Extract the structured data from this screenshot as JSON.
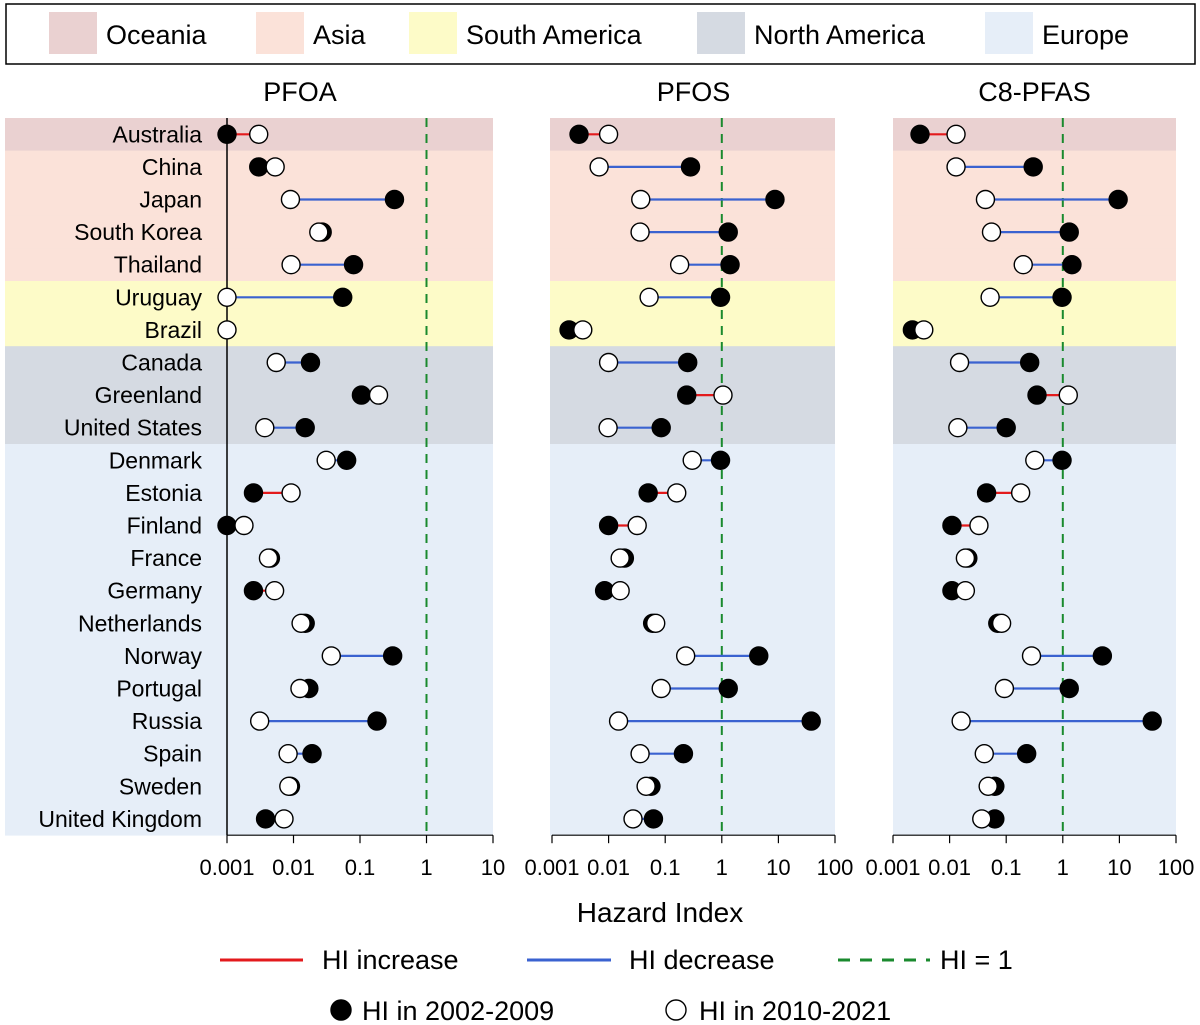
{
  "chart_data": {
    "type": "dumbbell",
    "scale": "log",
    "xlabel": "Hazard Index",
    "reference_line": {
      "value": 1,
      "label": "HI = 1",
      "color": "#1a8a2e"
    },
    "region_legend": [
      {
        "name": "Oceania",
        "color": "#ead1d1"
      },
      {
        "name": "Asia",
        "color": "#fbe2d9"
      },
      {
        "name": "South America",
        "color": "#fdfbc8"
      },
      {
        "name": "North America",
        "color": "#d5dae2"
      },
      {
        "name": "Europe",
        "color": "#e6eef8"
      }
    ],
    "line_legend": [
      {
        "name": "HI increase",
        "color": "#e31a1c"
      },
      {
        "name": "HI decrease",
        "color": "#3a62d0"
      }
    ],
    "marker_legend": [
      {
        "name": "HI in 2002-2009",
        "fill": "#000000"
      },
      {
        "name": "HI in 2010-2021",
        "fill": "#ffffff"
      }
    ],
    "countries": [
      {
        "name": "Australia",
        "region": "Oceania"
      },
      {
        "name": "China",
        "region": "Asia"
      },
      {
        "name": "Japan",
        "region": "Asia"
      },
      {
        "name": "South Korea",
        "region": "Asia"
      },
      {
        "name": "Thailand",
        "region": "Asia"
      },
      {
        "name": "Uruguay",
        "region": "South America"
      },
      {
        "name": "Brazil",
        "region": "South America"
      },
      {
        "name": "Canada",
        "region": "North America"
      },
      {
        "name": "Greenland",
        "region": "North America"
      },
      {
        "name": "United States",
        "region": "North America"
      },
      {
        "name": "Denmark",
        "region": "Europe"
      },
      {
        "name": "Estonia",
        "region": "Europe"
      },
      {
        "name": "Finland",
        "region": "Europe"
      },
      {
        "name": "France",
        "region": "Europe"
      },
      {
        "name": "Germany",
        "region": "Europe"
      },
      {
        "name": "Netherlands",
        "region": "Europe"
      },
      {
        "name": "Norway",
        "region": "Europe"
      },
      {
        "name": "Portugal",
        "region": "Europe"
      },
      {
        "name": "Russia",
        "region": "Europe"
      },
      {
        "name": "Spain",
        "region": "Europe"
      },
      {
        "name": "Sweden",
        "region": "Europe"
      },
      {
        "name": "United Kingdom",
        "region": "Europe"
      }
    ],
    "panels": [
      {
        "title": "PFOA",
        "xlim": [
          0.001,
          10
        ],
        "ticks": [
          0.001,
          0.01,
          0.1,
          1,
          10
        ],
        "tick_labels": [
          "0.001",
          "0.01",
          "0.1",
          "1",
          "10"
        ],
        "hi_2002_2009": [
          0.001,
          0.003,
          0.33,
          0.027,
          0.08,
          0.055,
          null,
          0.018,
          0.105,
          0.015,
          0.063,
          0.0025,
          0.001,
          0.0045,
          0.0025,
          0.015,
          0.31,
          0.017,
          0.18,
          0.019,
          0.009,
          0.0038
        ],
        "hi_2010_2021": [
          0.003,
          0.0053,
          0.009,
          0.024,
          0.0092,
          0.001,
          0.001,
          0.0055,
          0.19,
          0.0037,
          0.031,
          0.0092,
          0.0018,
          0.0042,
          0.0052,
          0.013,
          0.037,
          0.0125,
          0.0031,
          0.0083,
          0.0085,
          0.0072
        ]
      },
      {
        "title": "PFOS",
        "xlim": [
          0.001,
          100
        ],
        "ticks": [
          0.001,
          0.01,
          0.1,
          1,
          10,
          100
        ],
        "tick_labels": [
          "0.001",
          "0.01",
          "0.1",
          "1",
          "10",
          "100"
        ],
        "hi_2002_2009": [
          0.003,
          0.28,
          8.7,
          1.3,
          1.4,
          0.95,
          0.002,
          0.25,
          0.24,
          0.085,
          0.95,
          0.05,
          0.01,
          0.019,
          0.0085,
          0.06,
          4.5,
          1.3,
          38,
          0.21,
          0.056,
          0.062
        ],
        "hi_2010_2021": [
          0.01,
          0.0068,
          0.037,
          0.036,
          0.18,
          0.052,
          0.0035,
          0.01,
          1.05,
          0.0098,
          0.3,
          0.16,
          0.032,
          0.016,
          0.016,
          0.068,
          0.23,
          0.085,
          0.015,
          0.036,
          0.046,
          0.027
        ]
      },
      {
        "title": "C8-PFAS",
        "xlim": [
          0.001,
          100
        ],
        "ticks": [
          0.001,
          0.01,
          0.1,
          1,
          10,
          100
        ],
        "tick_labels": [
          "0.001",
          "0.01",
          "0.1",
          "1",
          "10",
          "100"
        ],
        "hi_2002_2009": [
          0.003,
          0.3,
          9.5,
          1.3,
          1.45,
          0.97,
          0.0022,
          0.26,
          0.35,
          0.1,
          0.97,
          0.045,
          0.011,
          0.021,
          0.011,
          0.071,
          5.0,
          1.3,
          38,
          0.23,
          0.063,
          0.063
        ],
        "hi_2010_2021": [
          0.013,
          0.013,
          0.043,
          0.055,
          0.2,
          0.052,
          0.0035,
          0.015,
          1.25,
          0.014,
          0.32,
          0.18,
          0.033,
          0.019,
          0.019,
          0.083,
          0.28,
          0.093,
          0.016,
          0.041,
          0.048,
          0.037
        ]
      }
    ]
  }
}
